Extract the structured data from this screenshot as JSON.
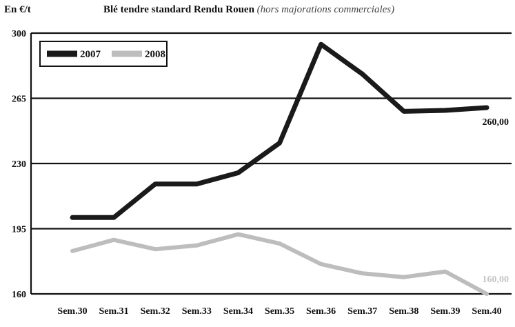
{
  "header": {
    "unit": "En €/t",
    "title_main": "Blé tendre standard Rendu Rouen",
    "title_sub": "(hors majorations commerciales)"
  },
  "chart_data": {
    "type": "line",
    "title": "Blé tendre standard Rendu Rouen (hors majorations commerciales)",
    "ylabel": "En €/t",
    "ylim": [
      160,
      300
    ],
    "yticks": [
      160,
      195,
      230,
      265,
      300
    ],
    "grid": "horizontal",
    "legend_position": "top-left",
    "categories": [
      "Sem.30",
      "Sem.31",
      "Sem.32",
      "Sem.33",
      "Sem.34",
      "Sem.35",
      "Sem.36",
      "Sem.37",
      "Sem.38",
      "Sem.39",
      "Sem.40"
    ],
    "series": [
      {
        "name": "2007",
        "color": "#1a1a1a",
        "values": [
          201,
          201,
          219,
          219,
          225,
          241,
          294,
          278,
          258,
          258.5,
          260
        ],
        "end_label": "260,00"
      },
      {
        "name": "2008",
        "color": "#bdbdbd",
        "values": [
          183,
          189,
          184,
          186,
          192,
          187,
          176,
          171,
          169,
          172,
          160
        ],
        "end_label": "160,00"
      }
    ]
  }
}
